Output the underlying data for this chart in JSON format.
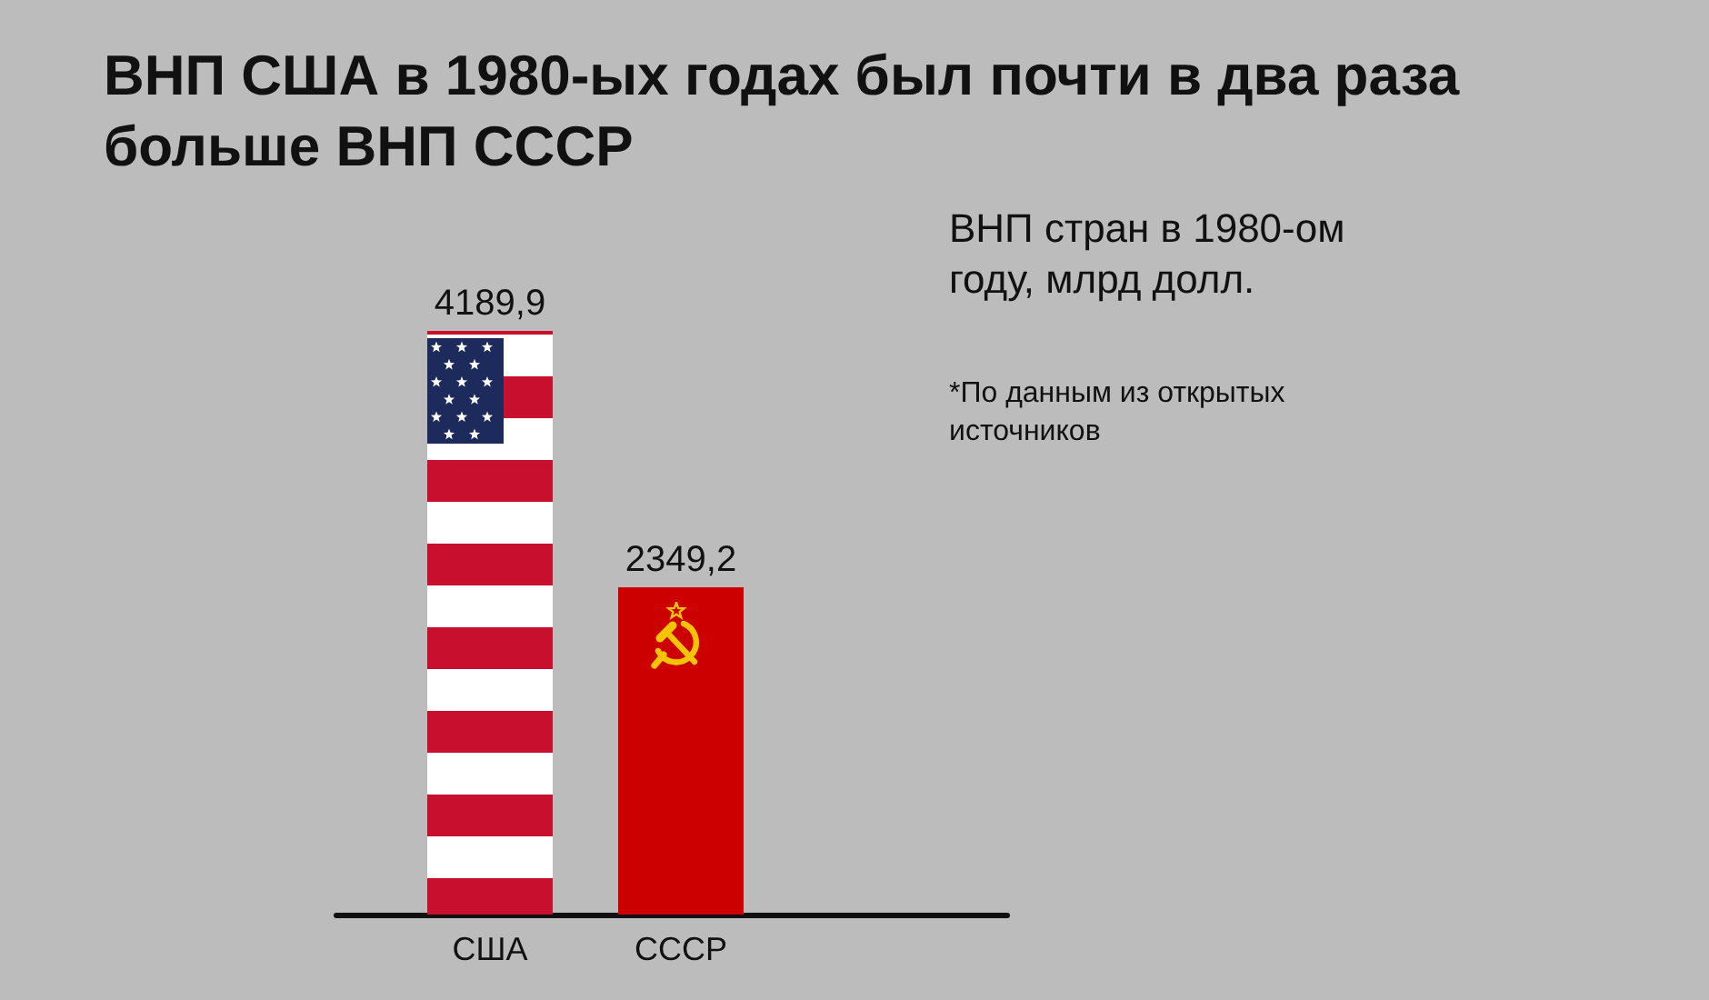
{
  "chart_data": {
    "type": "bar",
    "title": "ВНП США в 1980-ых годах был почти в два раза больше ВНП СССР",
    "subtitle": "ВНП стран в 1980-ом году, млрд долл.",
    "annotations": [
      "*По данным из открытых источников"
    ],
    "categories": [
      "США",
      "СССР"
    ],
    "values": [
      4189.9,
      2349.2
    ],
    "colors": [
      "#c8102e",
      "#cc0000"
    ],
    "value_labels": [
      "4189,9",
      "2349,2"
    ]
  }
}
